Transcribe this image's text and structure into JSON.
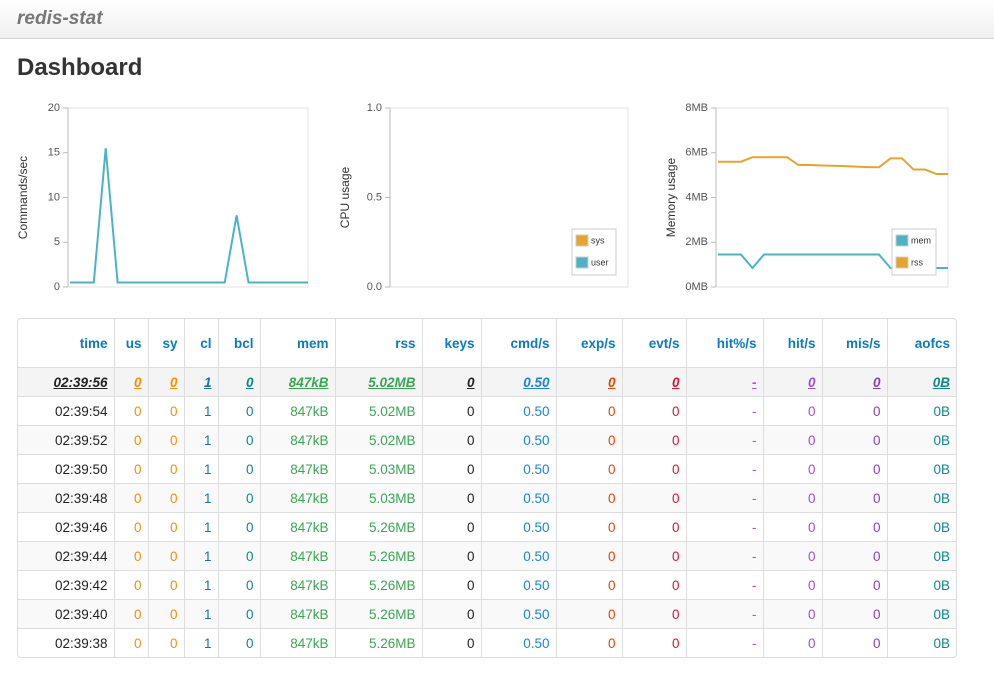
{
  "header": {
    "brand": "redis-stat",
    "title": "Dashboard"
  },
  "charts": [
    {
      "type": "line",
      "ylabel": "Commands/sec",
      "ylim": [
        0,
        20
      ],
      "yticks": [
        0,
        5,
        10,
        15,
        20
      ],
      "series": [
        {
          "name": null,
          "color": "#4bb3c3",
          "values": [
            0.5,
            0.5,
            0.5,
            15.5,
            0.5,
            0.5,
            0.5,
            0.5,
            0.5,
            0.5,
            0.5,
            0.5,
            0.5,
            0.5,
            8,
            0.5,
            0.5,
            0.5,
            0.5,
            0.5,
            0.5
          ]
        }
      ]
    },
    {
      "type": "line",
      "ylabel": "CPU usage",
      "ylim": [
        0,
        1
      ],
      "yticks": [
        {
          "value": 0,
          "label": "0.0"
        },
        {
          "value": 0.5,
          "label": "0.5"
        },
        {
          "value": 1,
          "label": "1.0"
        }
      ],
      "series": [
        {
          "name": "sys",
          "color": "#e8a42a",
          "values": []
        },
        {
          "name": "user",
          "color": "#4bb3c3",
          "values": []
        }
      ]
    },
    {
      "type": "line",
      "ylabel": "Memory usage",
      "ylim": [
        0,
        8
      ],
      "yticks": [
        {
          "value": 0,
          "label": "0MB"
        },
        {
          "value": 2,
          "label": "2MB"
        },
        {
          "value": 4,
          "label": "4MB"
        },
        {
          "value": 6,
          "label": "6MB"
        },
        {
          "value": 8,
          "label": "8MB"
        }
      ],
      "series": [
        {
          "name": "mem",
          "color": "#4bb3c3",
          "values": [
            1.45,
            1.45,
            1.45,
            0.85,
            1.45,
            1.45,
            1.45,
            1.45,
            1.45,
            1.45,
            1.45,
            1.45,
            1.45,
            1.45,
            1.45,
            0.85,
            0.85,
            0.85,
            0.85,
            0.85,
            0.85
          ]
        },
        {
          "name": "rss",
          "color": "#e8a42a",
          "values": [
            5.6,
            5.6,
            5.6,
            5.8,
            5.8,
            5.8,
            5.8,
            5.45,
            5.45,
            5.43,
            5.42,
            5.4,
            5.38,
            5.36,
            5.35,
            5.75,
            5.75,
            5.25,
            5.25,
            5.05,
            5.05
          ]
        }
      ]
    }
  ],
  "table": {
    "columns": [
      "time",
      "us",
      "sy",
      "cl",
      "bcl",
      "mem",
      "rss",
      "keys",
      "cmd/s",
      "exp/s",
      "evt/s",
      "hit%/s",
      "hit/s",
      "mis/s",
      "aofcs"
    ],
    "column_colors": [
      "#222",
      "#f0900a",
      "#f0900a",
      "#1f6fa8",
      "#11878a",
      "#3aa655",
      "#3aa655",
      "#222",
      "#1a86d0",
      "#e8420a",
      "#d4143c",
      "#b44fd0",
      "#a24fd0",
      "#8a3fc0",
      "#11878a"
    ],
    "rows": [
      [
        "02:39:56",
        "0",
        "0",
        "1",
        "0",
        "847kB",
        "5.02MB",
        "0",
        "0.50",
        "0",
        "0",
        "-",
        "0",
        "0",
        "0B"
      ],
      [
        "02:39:54",
        "0",
        "0",
        "1",
        "0",
        "847kB",
        "5.02MB",
        "0",
        "0.50",
        "0",
        "0",
        "-",
        "0",
        "0",
        "0B"
      ],
      [
        "02:39:52",
        "0",
        "0",
        "1",
        "0",
        "847kB",
        "5.02MB",
        "0",
        "0.50",
        "0",
        "0",
        "-",
        "0",
        "0",
        "0B"
      ],
      [
        "02:39:50",
        "0",
        "0",
        "1",
        "0",
        "847kB",
        "5.03MB",
        "0",
        "0.50",
        "0",
        "0",
        "-",
        "0",
        "0",
        "0B"
      ],
      [
        "02:39:48",
        "0",
        "0",
        "1",
        "0",
        "847kB",
        "5.03MB",
        "0",
        "0.50",
        "0",
        "0",
        "-",
        "0",
        "0",
        "0B"
      ],
      [
        "02:39:46",
        "0",
        "0",
        "1",
        "0",
        "847kB",
        "5.26MB",
        "0",
        "0.50",
        "0",
        "0",
        "-",
        "0",
        "0",
        "0B"
      ],
      [
        "02:39:44",
        "0",
        "0",
        "1",
        "0",
        "847kB",
        "5.26MB",
        "0",
        "0.50",
        "0",
        "0",
        "-",
        "0",
        "0",
        "0B"
      ],
      [
        "02:39:42",
        "0",
        "0",
        "1",
        "0",
        "847kB",
        "5.26MB",
        "0",
        "0.50",
        "0",
        "0",
        "-",
        "0",
        "0",
        "0B"
      ],
      [
        "02:39:40",
        "0",
        "0",
        "1",
        "0",
        "847kB",
        "5.26MB",
        "0",
        "0.50",
        "0",
        "0",
        "-",
        "0",
        "0",
        "0B"
      ],
      [
        "02:39:38",
        "0",
        "0",
        "1",
        "0",
        "847kB",
        "5.26MB",
        "0",
        "0.50",
        "0",
        "0",
        "-",
        "0",
        "0",
        "0B"
      ]
    ]
  }
}
